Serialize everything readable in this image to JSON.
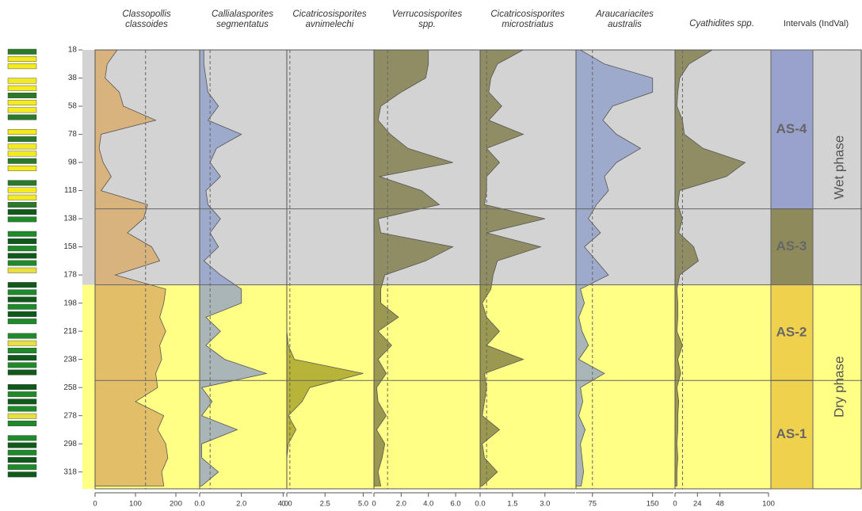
{
  "depth_axis": {
    "ylim": [
      18,
      330
    ],
    "yticks": [
      18,
      38,
      58,
      78,
      98,
      118,
      138,
      158,
      178,
      198,
      218,
      238,
      258,
      278,
      298,
      318
    ],
    "depths": [
      18,
      28,
      38,
      48,
      58,
      68,
      78,
      88,
      98,
      108,
      118,
      128,
      138,
      148,
      158,
      168,
      178,
      188,
      198,
      208,
      218,
      228,
      238,
      248,
      258,
      268,
      278,
      288,
      298,
      308,
      318,
      328
    ]
  },
  "phases": [
    {
      "label": "Wet phase",
      "top": 18,
      "bottom": 185,
      "color": "#d3d3d3"
    },
    {
      "label": "Dry phase",
      "top": 185,
      "bottom": 330,
      "color": "#ffff85"
    }
  ],
  "intervals": {
    "title": "Intervals (IndVal)",
    "zones": [
      {
        "label": "AS-4",
        "top": 18,
        "bottom": 131,
        "color": "#98a2cc"
      },
      {
        "label": "AS-3",
        "top": 131,
        "bottom": 185,
        "color": "#8e8a5c"
      },
      {
        "label": "AS-2",
        "top": 185,
        "bottom": 253,
        "color": "#efd14e"
      },
      {
        "label": "AS-1",
        "top": 253,
        "bottom": 330,
        "color": "#efd14e"
      }
    ]
  },
  "chart_data": [
    {
      "type": "area",
      "title": [
        "Classopollis",
        "classoides"
      ],
      "color": "#d9a860",
      "xlim": [
        0,
        255
      ],
      "xticks": [
        0,
        100,
        200
      ],
      "dashed_line": 125,
      "values": [
        55,
        30,
        25,
        60,
        70,
        150,
        15,
        10,
        20,
        40,
        15,
        130,
        120,
        80,
        140,
        160,
        50,
        175,
        170,
        160,
        175,
        160,
        165,
        150,
        155,
        100,
        170,
        155,
        175,
        180,
        165,
        170
      ]
    },
    {
      "type": "area",
      "title": [
        "Callialasporites",
        "segmentatus"
      ],
      "color": "#8c9cc8",
      "xlim": [
        0,
        4.1
      ],
      "xticks": [
        {
          "value": 0,
          "label": "0.0"
        },
        {
          "value": 2,
          "label": "2.0"
        },
        {
          "value": 4,
          "label": "4.0"
        }
      ],
      "dashed_line": 0.5,
      "values": [
        0.2,
        0.2,
        0.3,
        0.4,
        0.9,
        0.4,
        2.0,
        0.8,
        0.5,
        1.0,
        0.3,
        0.4,
        1.0,
        0.5,
        0.9,
        0.2,
        1.0,
        2.0,
        2.0,
        0.3,
        1.0,
        0.3,
        1.2,
        3.2,
        0.1,
        0.6,
        0.1,
        1.8,
        0.1,
        0.1,
        0.9,
        0.1
      ]
    },
    {
      "type": "area",
      "title": [
        "Cicatricosisporites",
        "avnimelechi"
      ],
      "color": "#a09a20",
      "xlim": [
        0,
        5.6
      ],
      "xticks": [
        {
          "value": 0,
          "label": "0.0"
        },
        2.5,
        {
          "value": 5,
          "label": "5.0"
        }
      ],
      "dashed_line": 0.2,
      "values": [
        0,
        0,
        0,
        0,
        0,
        0,
        0,
        0,
        0,
        0,
        0,
        0,
        0,
        0,
        0,
        0,
        0,
        0,
        0,
        0,
        0,
        0.1,
        0.5,
        5.0,
        1.5,
        1.0,
        0.1,
        0.6,
        0.1,
        0,
        0,
        0
      ]
    },
    {
      "type": "area",
      "title": [
        "Verrucosisporites",
        "spp."
      ],
      "color": "#7a7540",
      "xlim": [
        0,
        7.8
      ],
      "xticks": [
        0,
        {
          "value": 2,
          "label": "2.0"
        },
        {
          "value": 4,
          "label": "4.0"
        },
        {
          "value": 6,
          "label": "6.0"
        }
      ],
      "dashed_line": 1.0,
      "values": [
        4.0,
        4.0,
        3.8,
        2.0,
        0.5,
        0.3,
        1.2,
        2.5,
        5.8,
        0.4,
        3.5,
        4.8,
        0.3,
        0.5,
        5.8,
        3.8,
        0.8,
        0.5,
        0.5,
        1.8,
        0.3,
        1.3,
        0.3,
        0.9,
        0.2,
        0.3,
        0.9,
        0.2,
        0.8,
        0.6,
        0.3,
        0.5
      ]
    },
    {
      "type": "area",
      "title": [
        "Cicatricosisporites",
        "microstriatus"
      ],
      "color": "#7a7540",
      "xlim": [
        0,
        4.4
      ],
      "xticks": [
        {
          "value": 0,
          "label": "0.0"
        },
        1.5,
        {
          "value": 3,
          "label": "3.0"
        }
      ],
      "dashed_line": 0.3,
      "values": [
        2.0,
        0.8,
        0.5,
        0.4,
        1.0,
        0.4,
        2.0,
        0.3,
        0.9,
        0.3,
        0.3,
        0.2,
        3.0,
        0.3,
        2.8,
        0.8,
        0.6,
        0.5,
        0.1,
        0.3,
        0.9,
        0.3,
        2.0,
        0.2,
        0.3,
        0.2,
        0.1,
        0.9,
        0.1,
        0.2,
        0.8,
        0.1
      ]
    },
    {
      "type": "area",
      "title": [
        "Araucariacites",
        "australis"
      ],
      "color": "#8c9cc8",
      "xlim": [
        54.5,
        176
      ],
      "xticks": [
        75,
        150
      ],
      "dashed_line": 75,
      "values": [
        60,
        90,
        150,
        150,
        100,
        88,
        105,
        135,
        105,
        90,
        95,
        80,
        70,
        85,
        65,
        80,
        95,
        60,
        65,
        58,
        62,
        70,
        58,
        90,
        60,
        63,
        58,
        66,
        60,
        62,
        64,
        61
      ]
    },
    {
      "type": "area",
      "title": [
        "Cyathidites spp."
      ],
      "color": "#7a7540",
      "xlim": [
        0,
        100
      ],
      "xticks": [
        0,
        24,
        48,
        100
      ],
      "dashed_line": 8,
      "values": [
        40,
        15,
        5,
        3,
        2,
        8,
        10,
        30,
        75,
        55,
        5,
        3,
        8,
        4,
        20,
        25,
        5,
        2,
        3,
        3,
        2,
        8,
        3,
        6,
        2,
        4,
        3,
        3,
        2,
        3,
        2,
        2
      ]
    }
  ]
}
